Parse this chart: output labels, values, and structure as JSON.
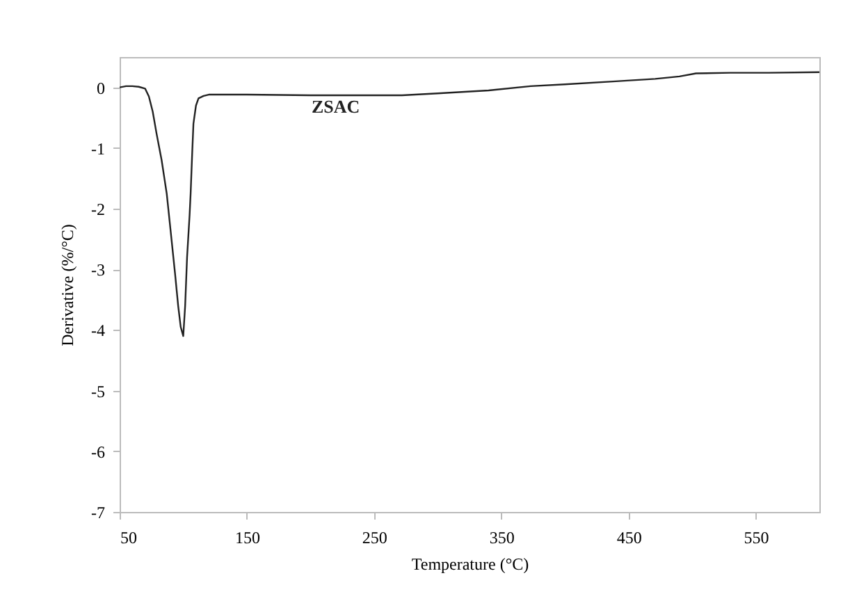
{
  "chart_data": {
    "type": "line",
    "xlabel": "Temperature (°C)",
    "ylabel": "Derivative (%/°C)",
    "xlim": [
      50,
      600
    ],
    "ylim": [
      -7,
      0.5
    ],
    "xticks": [
      50,
      150,
      250,
      350,
      450,
      550
    ],
    "yticks": [
      -7,
      -6,
      -5,
      -4,
      -3,
      -2,
      -1,
      0
    ],
    "grid": false,
    "legend": false,
    "series": [
      {
        "name": "ZSAC",
        "color": "#222222",
        "x": [
          50,
          55,
          60,
          65,
          70,
          73,
          76,
          79,
          83,
          87,
          90,
          93.5,
          96,
          98,
          100,
          101.5,
          103,
          105,
          105.8,
          107,
          108,
          110,
          112,
          116,
          120,
          150,
          200,
          272,
          300,
          340,
          373,
          400,
          440,
          471,
          490,
          503,
          530,
          560,
          600
        ],
        "values": [
          0,
          0.02,
          0.02,
          0.01,
          -0.02,
          -0.15,
          -0.4,
          -0.76,
          -1.2,
          -1.75,
          -2.35,
          -3.06,
          -3.6,
          -3.95,
          -4.1,
          -3.6,
          -2.8,
          -2.1,
          -1.75,
          -1.1,
          -0.6,
          -0.3,
          -0.18,
          -0.14,
          -0.12,
          -0.12,
          -0.13,
          -0.13,
          -0.1,
          -0.05,
          0.02,
          0.05,
          0.1,
          0.14,
          0.18,
          0.23,
          0.24,
          0.24,
          0.25
        ]
      }
    ]
  }
}
